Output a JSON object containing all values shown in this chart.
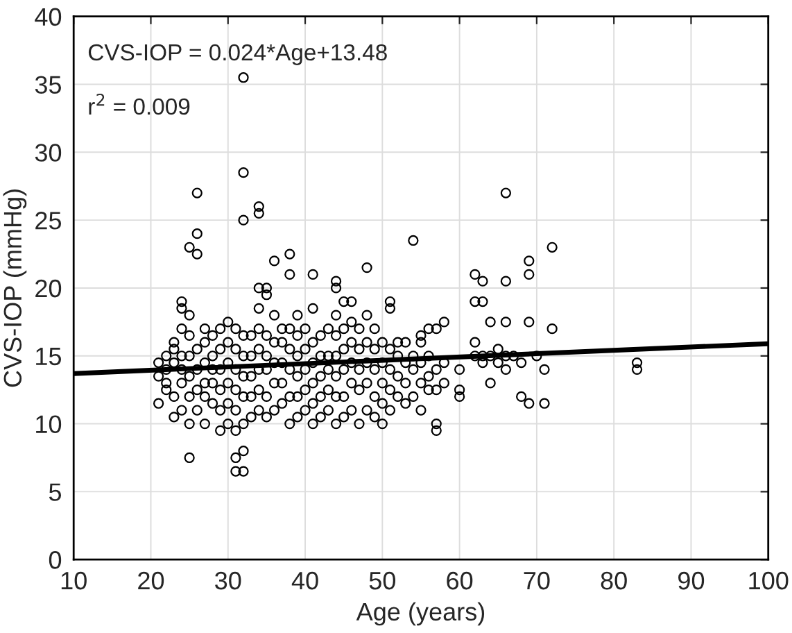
{
  "chart_data": {
    "type": "scatter",
    "xlabel": "Age (years)",
    "ylabel": "CVS-IOP (mmHg)",
    "annotations": [
      "CVS-IOP = 0.024*Age+13.48",
      "r$^{2}$ = 0.009"
    ],
    "xlim": [
      10,
      100
    ],
    "xticks": [
      10,
      20,
      30,
      40,
      50,
      60,
      70,
      80,
      90,
      100
    ],
    "ylim": [
      0,
      40
    ],
    "yticks": [
      0,
      5,
      10,
      15,
      20,
      25,
      30,
      35,
      40
    ],
    "grid": true,
    "legend": false,
    "marker": "circle",
    "series": [
      {
        "color": "#000000",
        "x": [
          21,
          21,
          21,
          22,
          22,
          22,
          22,
          23,
          23,
          23,
          23,
          23,
          24,
          24,
          24,
          24,
          24,
          24,
          24,
          25,
          25,
          25,
          25,
          25,
          25,
          25,
          25,
          26,
          26,
          26,
          26,
          26,
          26,
          26,
          27,
          27,
          27,
          27,
          27,
          27,
          28,
          28,
          28,
          28,
          28,
          29,
          29,
          29,
          29,
          29,
          29,
          30,
          30,
          30,
          30,
          30,
          30,
          31,
          31,
          31,
          31,
          31,
          31,
          31,
          31,
          32,
          32,
          32,
          32,
          32,
          32,
          32,
          32,
          32,
          32,
          33,
          33,
          33,
          33,
          33,
          34,
          34,
          34,
          34,
          34,
          34,
          34,
          34,
          34,
          35,
          35,
          35,
          35,
          35,
          35,
          35,
          36,
          36,
          36,
          36,
          36,
          36,
          37,
          37,
          37,
          37,
          37,
          38,
          38,
          38,
          38,
          38,
          38,
          38,
          39,
          39,
          39,
          39,
          39,
          39,
          40,
          40,
          40,
          40,
          40,
          41,
          41,
          41,
          41,
          41,
          41,
          41,
          42,
          42,
          42,
          42,
          42,
          43,
          43,
          43,
          43,
          43,
          44,
          44,
          44,
          44,
          44,
          44,
          44,
          44,
          45,
          45,
          45,
          45,
          45,
          45,
          46,
          46,
          46,
          46,
          46,
          46,
          47,
          47,
          47,
          47,
          47,
          48,
          48,
          48,
          48,
          48,
          48,
          49,
          49,
          49,
          49,
          49,
          50,
          50,
          50,
          50,
          50,
          51,
          51,
          51,
          51,
          51,
          51,
          52,
          52,
          52,
          52,
          53,
          53,
          53,
          53,
          54,
          54,
          54,
          54,
          55,
          55,
          55,
          55,
          55,
          56,
          56,
          56,
          56,
          57,
          57,
          57,
          57,
          57,
          58,
          58,
          58,
          60,
          60,
          60,
          62,
          62,
          62,
          62,
          63,
          63,
          63,
          63,
          64,
          64,
          64,
          65,
          65,
          66,
          66,
          66,
          66,
          66,
          67,
          68,
          68,
          69,
          69,
          69,
          69,
          70,
          71,
          71,
          72,
          72,
          83,
          83
        ],
        "values": [
          11.5,
          13.5,
          14.5,
          12.5,
          14,
          15,
          13,
          12,
          14.5,
          15.5,
          16,
          10.5,
          11,
          13,
          14,
          15,
          17,
          18.5,
          19,
          7.5,
          10,
          12,
          13.5,
          15,
          16.5,
          18,
          23,
          11,
          12.5,
          14,
          15.5,
          22.5,
          24,
          27,
          10,
          12,
          13,
          14.5,
          16,
          17,
          11.5,
          13,
          14,
          15,
          16.5,
          9.5,
          11,
          12.5,
          14,
          15.5,
          17,
          10,
          11.5,
          13,
          14.5,
          16,
          17.5,
          6.5,
          7.5,
          9.5,
          11,
          12.5,
          14,
          15.5,
          17,
          6.5,
          8,
          10,
          12,
          13.5,
          15,
          16.5,
          25,
          28.5,
          35.5,
          10.5,
          12,
          13.5,
          15,
          16.5,
          11,
          12.5,
          14,
          15.5,
          17,
          18.5,
          20,
          25.5,
          26,
          10.5,
          12,
          14,
          15,
          16.5,
          19.5,
          20,
          11,
          13,
          14.5,
          16,
          18,
          22,
          11.5,
          13,
          14.5,
          16,
          17,
          10,
          12,
          14,
          15.5,
          17,
          21,
          22.5,
          10.5,
          12,
          13.5,
          15,
          16.5,
          18,
          11,
          12.5,
          14,
          15.5,
          17,
          10,
          11.5,
          13,
          14.5,
          16,
          18.5,
          21,
          10.5,
          12,
          13.5,
          15,
          16.5,
          11,
          12.5,
          14,
          15,
          17,
          10,
          12,
          13.5,
          15,
          16.5,
          18,
          20,
          20.5,
          10.5,
          12,
          14,
          15.5,
          17,
          19,
          11,
          13,
          14.5,
          16,
          17.5,
          19,
          10,
          12.5,
          14,
          15.5,
          17,
          11,
          13,
          14.5,
          16,
          18,
          21.5,
          10.5,
          12,
          14,
          15.5,
          17,
          10,
          11.5,
          13,
          14.5,
          16,
          11,
          12.5,
          14,
          15.5,
          18.5,
          19,
          12,
          13.5,
          15,
          16,
          11.5,
          13,
          14.5,
          16,
          12,
          14,
          15,
          23.5,
          11,
          13,
          14.5,
          16,
          16.5,
          12.5,
          13.5,
          15,
          17,
          9.5,
          10,
          12.5,
          14,
          17,
          13,
          14.5,
          17.5,
          12,
          12.5,
          14,
          15,
          16,
          21,
          19,
          14.5,
          19,
          20.5,
          15,
          13,
          15,
          17.5,
          14.5,
          15.5,
          14,
          15,
          17.5,
          20.5,
          27,
          15,
          12,
          14.5,
          11.5,
          17.5,
          21,
          22,
          15,
          11.5,
          14,
          17,
          23,
          14,
          14.5
        ]
      },
      {
        "type": "line",
        "color": "#000000",
        "marker": "none",
        "line_style": "solid",
        "x": [
          10,
          100
        ],
        "values": [
          13.7,
          15.9
        ]
      }
    ]
  }
}
